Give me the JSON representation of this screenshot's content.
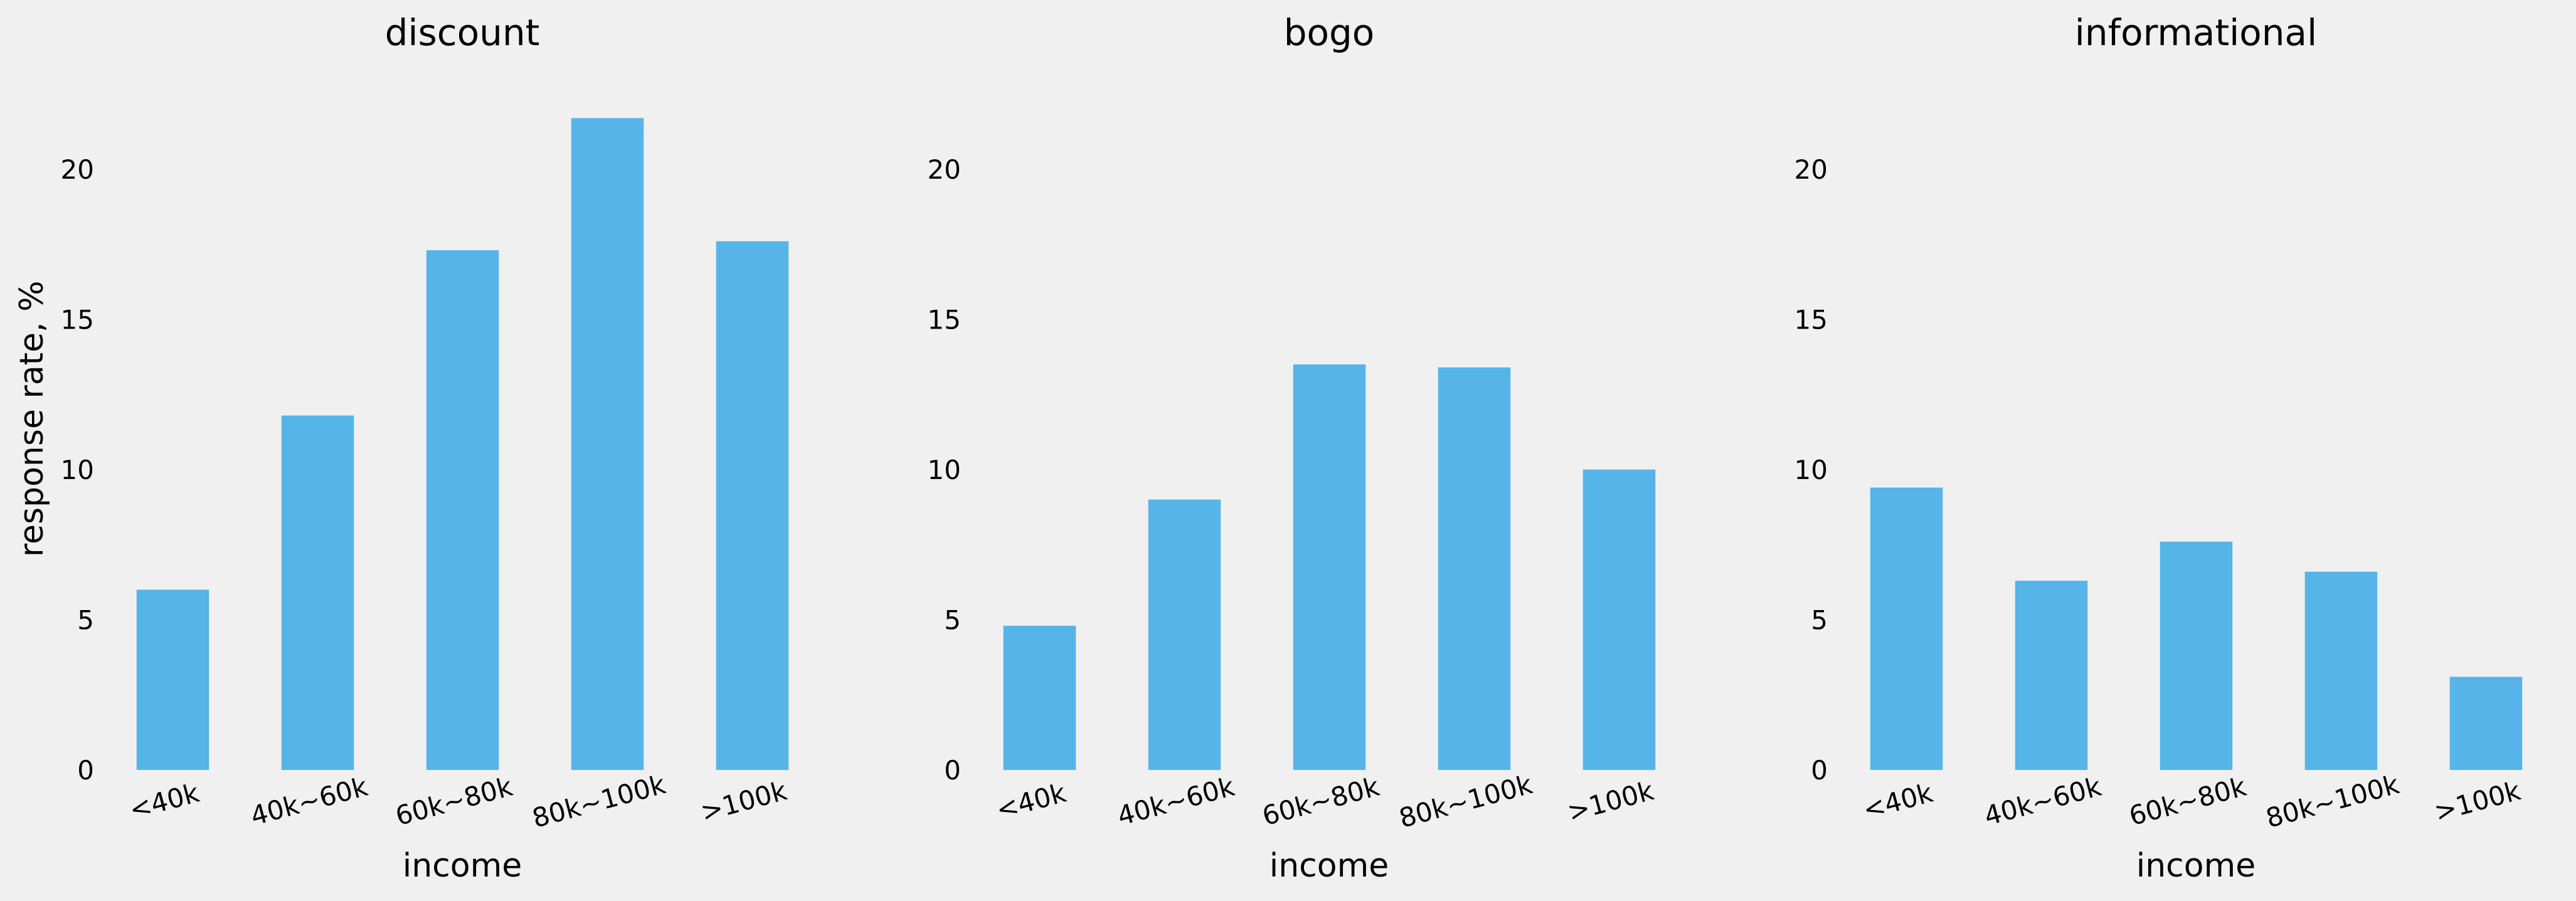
{
  "chart_data": [
    {
      "type": "bar",
      "title": "discount",
      "categories": [
        "<40k",
        "40k~60k",
        "60k~80k",
        "80k~100k",
        ">100k"
      ],
      "values": [
        6.0,
        11.8,
        17.3,
        21.7,
        17.6
      ],
      "xlabel": "income",
      "ylabel": "response rate, %",
      "ylim": [
        0,
        22.5
      ],
      "yticks": [
        0,
        5,
        10,
        15,
        20
      ],
      "bar_color": "#56b4e9",
      "grid": false
    },
    {
      "type": "bar",
      "title": "bogo",
      "categories": [
        "<40k",
        "40k~60k",
        "60k~80k",
        "80k~100k",
        ">100k"
      ],
      "values": [
        4.8,
        9.0,
        13.5,
        13.4,
        10.0
      ],
      "xlabel": "income",
      "ylabel": "",
      "ylim": [
        0,
        22.5
      ],
      "yticks": [
        0,
        5,
        10,
        15,
        20
      ],
      "bar_color": "#56b4e9",
      "grid": false
    },
    {
      "type": "bar",
      "title": "informational",
      "categories": [
        "<40k",
        "40k~60k",
        "60k~80k",
        "80k~100k",
        ">100k"
      ],
      "values": [
        9.4,
        6.3,
        7.6,
        6.6,
        3.1
      ],
      "xlabel": "income",
      "ylabel": "",
      "ylim": [
        0,
        22.5
      ],
      "yticks": [
        0,
        5,
        10,
        15,
        20
      ],
      "bar_color": "#56b4e9",
      "grid": false
    }
  ]
}
